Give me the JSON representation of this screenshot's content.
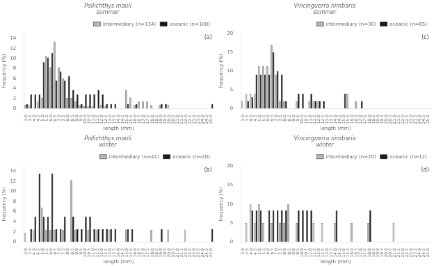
{
  "chart_data": [
    {
      "type": "bar",
      "title": "Pollichthys mauli",
      "subtitle": "summer",
      "annotations": [
        "(a)"
      ],
      "xlabel": "length (mm)",
      "ylabel": "frequency (%)",
      "ylim": [
        0,
        15
      ],
      "yticks": [
        0,
        2,
        4,
        6,
        8,
        10,
        12,
        14
      ],
      "grid": false,
      "legend": "upper right",
      "categories": [
        "3.0",
        "3.5",
        "4.0",
        "4.5",
        "5.0",
        "5.5",
        "6.0",
        "6.5",
        "7.0",
        "7.5",
        "8.0",
        "8.5",
        "9.0",
        "9.5",
        "10.0",
        "10.5",
        "11.0",
        "11.5",
        "12.0",
        "12.5",
        "13.0",
        "13.5",
        "14.0",
        "14.5",
        "15.0",
        "15.5",
        "16.0",
        "16.5",
        "17.0",
        "17.5",
        "18.0",
        "18.5",
        "19.0",
        "19.5",
        "20.0",
        "20.5",
        "21.0",
        "21.5",
        "22.0",
        "22.5",
        "23.0",
        "23.5",
        "24.0",
        "24.5",
        "25.0"
      ],
      "series": [
        {
          "name": "intermediary (n=134)",
          "color": "#b8b8b8",
          "values": [
            0.7,
            0.7,
            0.0,
            1.4,
            2.1,
            10.4,
            8.2,
            13.4,
            8.2,
            6.0,
            2.1,
            2.1,
            1.4,
            0.7,
            0.5,
            0.5,
            0.5,
            0.0,
            0.7,
            0.5,
            0.0,
            0.0,
            0.0,
            0.0,
            3.7,
            2.2,
            0.7,
            1.4,
            1.4,
            1.4,
            0.7,
            0.0,
            0.7,
            0.0,
            0.7,
            0.0,
            0.0,
            0.0,
            0.0,
            0.0,
            0.0,
            0.0,
            0.0,
            0.0,
            0.0
          ]
        },
        {
          "name": "oceanic (n=108)",
          "color": "#1a1a1a",
          "values": [
            0.9,
            2.8,
            2.8,
            2.8,
            9.3,
            10.2,
            11.1,
            5.6,
            7.4,
            5.6,
            6.5,
            3.7,
            2.8,
            0.9,
            2.8,
            2.8,
            2.8,
            3.7,
            2.8,
            0.9,
            0.9,
            0.9,
            0.0,
            0.0,
            0.9,
            0.0,
            0.9,
            0.0,
            0.0,
            0.0,
            0.0,
            0.0,
            0.9,
            0.9,
            0.0,
            0.0,
            0.0,
            0.0,
            0.0,
            0.0,
            0.0,
            0.0,
            0.0,
            0.0,
            0.9
          ]
        }
      ]
    },
    {
      "type": "bar",
      "title": "Vincinguerra nimbaria",
      "subtitle": "summer",
      "annotations": [
        "(c)"
      ],
      "xlabel": "length (mm)",
      "ylabel": "frequency (%)",
      "ylim": [
        0,
        20
      ],
      "yticks": [
        0,
        5,
        10,
        15,
        20
      ],
      "grid": false,
      "legend": "upper right",
      "categories": [
        "3.0",
        "3.5",
        "4.0",
        "4.5",
        "5.0",
        "5.5",
        "6.0",
        "6.5",
        "7.0",
        "7.5",
        "8.0",
        "8.5",
        "9.0",
        "9.5",
        "10.0",
        "10.5",
        "11.0",
        "11.5",
        "12.0",
        "12.5",
        "13.0",
        "13.5",
        "14.0",
        "14.5",
        "15.0",
        "15.5",
        "16.0",
        "16.5",
        "17.0",
        "17.5",
        "18.0",
        "18.5",
        "19.0",
        "19.5",
        "20.0",
        "20.5",
        "21.0",
        "21.5",
        "22.0",
        "22.5",
        "23.0",
        "23.5",
        "24.0",
        "24.5",
        "25.0"
      ],
      "series": [
        {
          "name": "intermediary (n=30)",
          "color": "#b8b8b8",
          "values": [
            2.0,
            4.0,
            4.0,
            4.0,
            11.3,
            11.3,
            11.3,
            17.0,
            9.0,
            2.0,
            2.0,
            0.0,
            0.0,
            2.0,
            0.0,
            0.0,
            2.0,
            2.0,
            2.0,
            0.0,
            0.0,
            0.0,
            0.0,
            0.0,
            0.0,
            4.0,
            0.0,
            2.0,
            0.0,
            0.0,
            0.0,
            0.0,
            0.0,
            0.0,
            0.0,
            0.0,
            0.0,
            0.0,
            0.0,
            0.0,
            0.0,
            0.0,
            0.0,
            0.0,
            0.0
          ]
        },
        {
          "name": "oceanic (n=65)",
          "color": "#1a1a1a",
          "values": [
            0.0,
            2.0,
            3.0,
            9.0,
            9.0,
            9.0,
            9.0,
            15.0,
            10.0,
            9.0,
            2.0,
            0.0,
            0.0,
            4.0,
            4.0,
            0.0,
            4.0,
            2.0,
            2.0,
            2.0,
            0.0,
            0.0,
            0.0,
            0.0,
            4.0,
            0.0,
            0.0,
            0.0,
            2.0,
            0.0,
            0.0,
            0.0,
            0.0,
            0.0,
            0.0,
            0.0,
            0.0,
            0.0,
            0.0,
            0.0,
            0.0,
            0.0,
            0.0,
            0.0,
            0.0
          ]
        }
      ]
    },
    {
      "type": "bar",
      "title": "Pollichthys mauli",
      "subtitle": "winter",
      "annotations": [
        "(b)"
      ],
      "xlabel": "length (mm)",
      "ylabel": "frequency (%)",
      "ylim": [
        0,
        15
      ],
      "yticks": [
        0,
        2,
        4,
        6,
        8,
        10,
        12,
        14
      ],
      "grid": false,
      "legend": "upper right",
      "categories": [
        "3.0",
        "3.5",
        "4.0",
        "4.5",
        "5.0",
        "5.5",
        "6.0",
        "6.5",
        "7.0",
        "7.5",
        "8.0",
        "8.5",
        "9.0",
        "9.5",
        "10.0",
        "10.5",
        "11.0",
        "11.5",
        "12.0",
        "12.5",
        "13.0",
        "13.5",
        "14.0",
        "14.5",
        "15.0",
        "15.5",
        "16.0",
        "16.5",
        "17.0",
        "17.5",
        "18.0",
        "18.5",
        "19.0",
        "19.5",
        "20.0",
        "20.5",
        "21.0",
        "21.5",
        "22.0",
        "22.5",
        "23.0",
        "23.5",
        "24.0",
        "24.5",
        "25.0"
      ],
      "series": [
        {
          "name": "intermediary (n=41)",
          "color": "#b8b8b8",
          "values": [
            1.7,
            0.0,
            2.4,
            0.0,
            6.8,
            2.4,
            2.4,
            2.4,
            0.0,
            2.4,
            0.0,
            12.2,
            2.4,
            0.0,
            0.0,
            2.4,
            0.0,
            2.4,
            0.0,
            0.0,
            2.4,
            0.0,
            0.0,
            0.0,
            2.4,
            0.0,
            0.0,
            0.0,
            0.0,
            0.0,
            2.4,
            0.0,
            0.0,
            0.0,
            2.4,
            0.0,
            0.0,
            0.0,
            2.4,
            0.0,
            0.0,
            0.0,
            0.0,
            0.0,
            0.0
          ]
        },
        {
          "name": "oceanic (n=20)",
          "color": "#1a1a1a",
          "values": [
            0.0,
            2.5,
            5.0,
            13.5,
            5.0,
            5.0,
            13.5,
            2.5,
            2.5,
            5.0,
            0.0,
            5.0,
            2.5,
            2.5,
            5.0,
            5.0,
            2.5,
            2.5,
            2.5,
            2.5,
            2.5,
            2.5,
            0.0,
            0.0,
            2.5,
            2.5,
            0.0,
            0.0,
            0.0,
            0.0,
            0.0,
            0.0,
            2.5,
            0.0,
            0.0,
            0.0,
            0.0,
            0.0,
            0.0,
            0.0,
            0.0,
            0.0,
            0.0,
            0.0,
            2.5
          ]
        }
      ]
    },
    {
      "type": "bar",
      "title": "Vincinguerra nimbaria",
      "subtitle": "winter",
      "annotations": [
        "(d)"
      ],
      "xlabel": "length (mm)",
      "ylabel": "frequency (%)",
      "ylim": [
        0,
        20
      ],
      "yticks": [
        0,
        5,
        10,
        15,
        20
      ],
      "grid": false,
      "legend": "upper right",
      "categories": [
        "3.0",
        "3.5",
        "4.0",
        "4.5",
        "5.0",
        "5.5",
        "6.0",
        "6.5",
        "7.0",
        "7.5",
        "8.0",
        "8.5",
        "9.0",
        "9.5",
        "10.0",
        "10.5",
        "11.0",
        "11.5",
        "12.0",
        "12.5",
        "13.0",
        "13.5",
        "14.0",
        "14.5",
        "15.0",
        "15.5",
        "16.0",
        "16.5",
        "17.0",
        "17.5",
        "18.0",
        "18.5",
        "19.0",
        "19.5",
        "20.0",
        "20.5",
        "21.0",
        "21.5",
        "22.0",
        "22.5",
        "23.0",
        "23.5",
        "24.0",
        "24.5",
        "25.0"
      ],
      "series": [
        {
          "name": "intermediary (n=20)",
          "color": "#b8b8b8",
          "values": [
            0.0,
            5.0,
            10.0,
            5.0,
            10.0,
            5.0,
            0.0,
            5.0,
            0.0,
            5.0,
            5.0,
            10.0,
            0.0,
            5.0,
            0.0,
            0.0,
            0.0,
            5.0,
            0.0,
            5.0,
            0.0,
            0.0,
            5.0,
            0.0,
            0.0,
            0.0,
            5.0,
            0.0,
            0.0,
            0.0,
            5.0,
            0.0,
            0.0,
            0.0,
            0.0,
            0.0,
            5.0,
            0.0,
            0.0,
            0.0,
            0.0,
            0.0,
            0.0,
            0.0,
            0.0
          ]
        },
        {
          "name": "oceanic (n=12)",
          "color": "#1a1a1a",
          "values": [
            0.0,
            0.0,
            8.3,
            8.3,
            8.3,
            0.0,
            8.3,
            8.3,
            8.3,
            8.3,
            8.3,
            0.0,
            0.0,
            8.3,
            8.3,
            8.3,
            8.3,
            0.0,
            0.0,
            0.0,
            0.0,
            0.0,
            8.3,
            0.0,
            0.0,
            0.0,
            0.0,
            0.0,
            0.0,
            0.0,
            8.3,
            0.0,
            0.0,
            0.0,
            0.0,
            0.0,
            0.0,
            0.0,
            0.0,
            0.0,
            0.0,
            0.0,
            0.0,
            0.0,
            0.0
          ]
        }
      ]
    }
  ]
}
